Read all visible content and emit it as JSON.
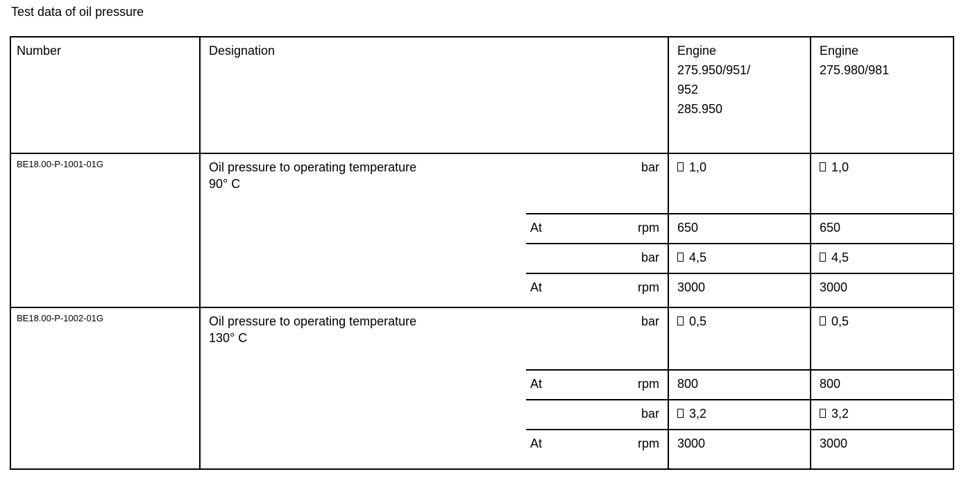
{
  "title": "Test data of oil pressure",
  "icons": {
    "value_prefix_box": "□"
  },
  "table": {
    "headers": {
      "number": "Number",
      "designation": "Designation",
      "engine1_lines": [
        "Engine",
        "275.950/951/",
        "952",
        "285.950"
      ],
      "engine2_lines": [
        "Engine",
        "275.980/981"
      ]
    },
    "groups": [
      {
        "number": "BE18.00-P-1001-01G",
        "designation_lines": [
          "Oil pressure to operating temperature",
          "90° C"
        ],
        "rows": [
          {
            "at": "",
            "unit": "bar",
            "box": true,
            "v1": "1,0",
            "v2": "1,0"
          },
          {
            "at": "At",
            "unit": "rpm",
            "box": false,
            "v1": "650",
            "v2": "650"
          },
          {
            "at": "",
            "unit": "bar",
            "box": true,
            "v1": "4,5",
            "v2": "4,5"
          },
          {
            "at": "At",
            "unit": "rpm",
            "box": false,
            "v1": "3000",
            "v2": "3000"
          }
        ]
      },
      {
        "number": "BE18.00-P-1002-01G",
        "designation_lines": [
          "Oil pressure to operating temperature",
          "130° C"
        ],
        "rows": [
          {
            "at": "",
            "unit": "bar",
            "box": true,
            "v1": "0,5",
            "v2": "0,5"
          },
          {
            "at": "At",
            "unit": "rpm",
            "box": false,
            "v1": "800",
            "v2": "800"
          },
          {
            "at": "",
            "unit": "bar",
            "box": true,
            "v1": "3,2",
            "v2": "3,2"
          },
          {
            "at": "At",
            "unit": "rpm",
            "box": false,
            "v1": "3000",
            "v2": "3000"
          }
        ]
      }
    ]
  }
}
